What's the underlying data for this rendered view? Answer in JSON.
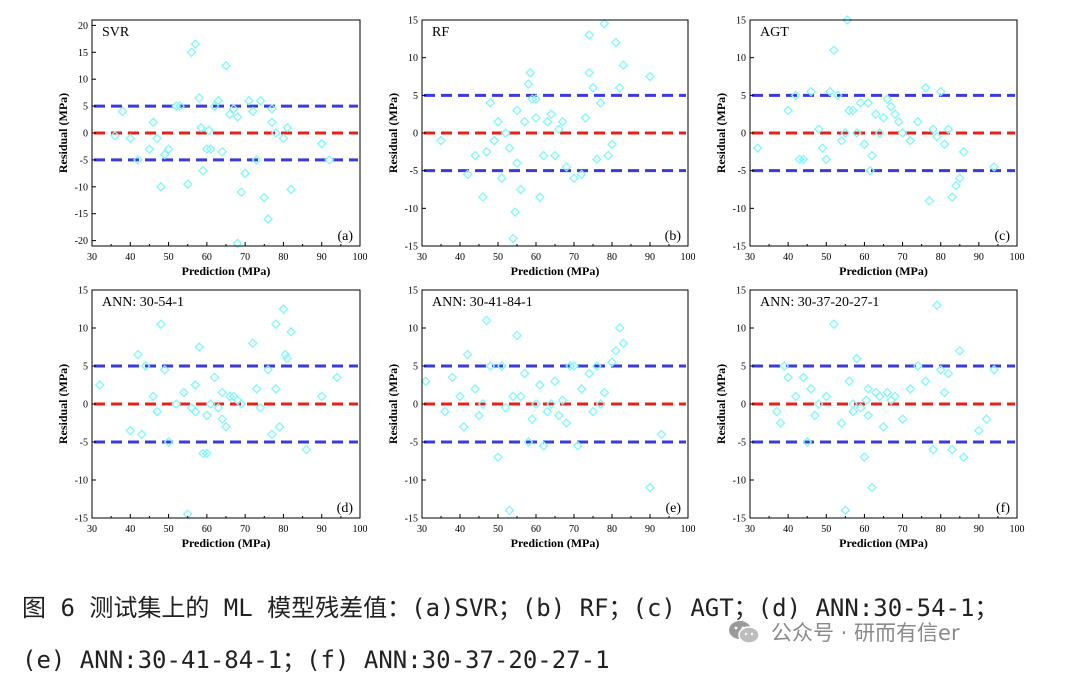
{
  "figure": {
    "caption_line1": "图 6 测试集上的 ML 模型残差值：(a)SVR；(b) RF；(c) AGT；(d) ANN:30-54-1；",
    "caption_line2": "(e) ANN:30-41-84-1；(f) ANN:30-37-20-27-1",
    "watermark": "公众号 · 研而有信er"
  },
  "colors": {
    "points": "#7ff8f8",
    "zero_line": "#e8201a",
    "band_lines": "#3b3bdc",
    "axis": "#000000"
  },
  "chart_data": [
    {
      "type": "scatter",
      "title": "SVR",
      "panel_label": "(a)",
      "xlabel": "Prediction (MPa)",
      "ylabel": "Residual (MPa)",
      "xlim": [
        30,
        100
      ],
      "ylim": [
        -21,
        21
      ],
      "xticks": [
        30,
        40,
        50,
        60,
        70,
        80,
        90,
        100
      ],
      "yticks": [
        -20,
        -15,
        -10,
        -5,
        0,
        5,
        10,
        15,
        20
      ],
      "hlines": [
        {
          "y": 0,
          "style": "zero"
        },
        {
          "y": 5,
          "style": "band"
        },
        {
          "y": -5,
          "style": "band"
        }
      ],
      "x": [
        36,
        38,
        40,
        42,
        45,
        46,
        47,
        48,
        49,
        50,
        52,
        53,
        55,
        56,
        57,
        58,
        58.5,
        59,
        60,
        60.5,
        61,
        62,
        63,
        64,
        65,
        66,
        67,
        68,
        68,
        69,
        70,
        71,
        72,
        73,
        74,
        75,
        76,
        77,
        77,
        78,
        80,
        81,
        82,
        90,
        92
      ],
      "y": [
        -0.5,
        4,
        -1,
        -5,
        -3,
        2,
        -1,
        -10,
        -4,
        -3,
        5,
        5,
        -9.5,
        15,
        16.5,
        6.5,
        1,
        -7,
        -3,
        0.5,
        -3,
        5,
        6,
        -3.5,
        12.5,
        3.5,
        4.5,
        -20.5,
        3,
        -11,
        -7.5,
        6,
        4,
        -5,
        6,
        -12,
        -16,
        2,
        4.5,
        0,
        -1,
        1,
        -10.5,
        -2,
        -5
      ]
    },
    {
      "type": "scatter",
      "title": "RF",
      "panel_label": "(b)",
      "xlabel": "Prediction (MPa)",
      "ylabel": "Residual (MPa)",
      "xlim": [
        30,
        100
      ],
      "ylim": [
        -15,
        15
      ],
      "xticks": [
        30,
        40,
        50,
        60,
        70,
        80,
        90,
        100
      ],
      "yticks": [
        -15,
        -10,
        -5,
        0,
        5,
        10,
        15
      ],
      "hlines": [
        {
          "y": 0,
          "style": "zero"
        },
        {
          "y": 5,
          "style": "band"
        },
        {
          "y": -5,
          "style": "band"
        }
      ],
      "x": [
        35,
        42,
        44,
        46,
        47,
        48,
        49,
        50,
        51,
        52,
        53,
        54,
        54.5,
        55,
        56,
        57,
        58,
        58.5,
        59,
        60,
        61,
        62,
        63,
        64,
        65,
        66,
        67,
        68,
        70,
        72,
        73,
        74,
        75,
        76,
        77,
        78,
        79,
        80,
        81,
        82,
        83,
        90,
        55,
        60,
        74
      ],
      "y": [
        -1,
        -5.5,
        -3,
        -8.5,
        -2.5,
        4,
        -1,
        1.5,
        -6,
        0,
        -2,
        -14,
        -10.5,
        3,
        -7.5,
        1.5,
        6.5,
        8,
        4.5,
        2,
        -8.5,
        -3,
        1.5,
        2.5,
        -3,
        0.5,
        1.5,
        -4.5,
        -6,
        -5.5,
        2,
        13,
        6,
        -3.5,
        4,
        14.5,
        -3,
        -1.5,
        12,
        6,
        9,
        7.5,
        -4,
        4.5,
        8
      ]
    },
    {
      "type": "scatter",
      "title": "AGT",
      "panel_label": "(c)",
      "xlabel": "Prediction (MPa)",
      "ylabel": "Residual (MPa)",
      "xlim": [
        30,
        100
      ],
      "ylim": [
        -15,
        15
      ],
      "xticks": [
        30,
        40,
        50,
        60,
        70,
        80,
        90,
        100
      ],
      "yticks": [
        -15,
        -10,
        -5,
        0,
        5,
        10,
        15
      ],
      "hlines": [
        {
          "y": 0,
          "style": "zero"
        },
        {
          "y": 5,
          "style": "band"
        },
        {
          "y": -5,
          "style": "band"
        }
      ],
      "x": [
        32,
        40,
        42,
        43,
        44,
        46,
        48,
        49,
        50,
        51,
        52,
        53,
        54,
        55,
        55.5,
        56,
        57,
        58,
        59,
        60,
        61,
        61.5,
        62,
        63,
        64,
        65,
        66,
        67,
        68,
        69,
        70,
        72,
        74,
        76,
        77,
        78,
        79,
        80,
        81,
        82,
        83,
        84,
        85,
        86,
        94
      ],
      "y": [
        -2,
        3,
        5,
        -3.5,
        -3.5,
        5.5,
        0.5,
        -2,
        -3.5,
        5.5,
        11,
        5,
        -1,
        0,
        15,
        3,
        3,
        0,
        4,
        -1.5,
        4,
        -5,
        -3,
        2.5,
        0,
        2,
        4.5,
        3.5,
        2.5,
        1.5,
        0,
        -1,
        1.5,
        6,
        -9,
        0.5,
        -0.5,
        5.5,
        -1.5,
        0.5,
        -8.5,
        -7,
        -6,
        -2.5,
        -4.5
      ]
    },
    {
      "type": "scatter",
      "title": "ANN: 30-54-1",
      "panel_label": "(d)",
      "xlabel": "Prediction (MPa)",
      "ylabel": "Residual (MPa)",
      "xlim": [
        30,
        100
      ],
      "ylim": [
        -15,
        15
      ],
      "xticks": [
        30,
        40,
        50,
        60,
        70,
        80,
        90,
        100
      ],
      "yticks": [
        -15,
        -10,
        -5,
        0,
        5,
        10,
        15
      ],
      "hlines": [
        {
          "y": 0,
          "style": "zero"
        },
        {
          "y": 5,
          "style": "band"
        },
        {
          "y": -5,
          "style": "band"
        }
      ],
      "x": [
        32,
        40,
        42,
        43,
        44,
        46,
        47,
        48,
        49,
        50,
        52,
        54,
        55,
        56,
        57,
        58,
        59,
        60,
        61,
        62,
        63,
        64,
        65,
        66,
        67,
        68,
        72,
        73,
        74,
        76,
        77,
        78,
        79,
        80,
        80.5,
        81,
        82,
        86,
        90,
        94,
        60,
        69,
        57,
        64,
        78
      ],
      "y": [
        2.5,
        -3.5,
        6.5,
        -4,
        5,
        1,
        -1,
        10.5,
        4.5,
        -5,
        0,
        1.5,
        -14.5,
        -0.5,
        2.5,
        7.5,
        -6.5,
        -6.5,
        0,
        3.5,
        -0.5,
        1.5,
        -3,
        1,
        1,
        0.5,
        8,
        2,
        -0.5,
        4.5,
        -4,
        10.5,
        -3,
        12.5,
        6.5,
        6,
        9.5,
        -6,
        1,
        3.5,
        -1.5,
        0,
        -1,
        -2,
        2
      ]
    },
    {
      "type": "scatter",
      "title": "ANN: 30-41-84-1",
      "panel_label": "(e)",
      "xlabel": "Prediction (MPa)",
      "ylabel": "Residual (MPa)",
      "xlim": [
        30,
        100
      ],
      "ylim": [
        -15,
        15
      ],
      "xticks": [
        30,
        40,
        50,
        60,
        70,
        80,
        90,
        100
      ],
      "yticks": [
        -15,
        -10,
        -5,
        0,
        5,
        10,
        15
      ],
      "hlines": [
        {
          "y": 0,
          "style": "zero"
        },
        {
          "y": 5,
          "style": "band"
        },
        {
          "y": -5,
          "style": "band"
        }
      ],
      "x": [
        31,
        36,
        38,
        40,
        41,
        42,
        44,
        45,
        46,
        47,
        48,
        50,
        51,
        52,
        53,
        54,
        55,
        56,
        57,
        58,
        59,
        60,
        61,
        62,
        63,
        64,
        65,
        66,
        67,
        68,
        69,
        70,
        71,
        72,
        74,
        75,
        76,
        77,
        78,
        80,
        81,
        82,
        83,
        90,
        93
      ],
      "y": [
        3,
        -1,
        3.5,
        1,
        -3,
        6.5,
        2,
        -1.5,
        0,
        11,
        5,
        -7,
        5,
        -0.5,
        -14,
        1,
        9,
        1,
        4,
        -5,
        -2,
        0,
        2.5,
        -5.5,
        -1,
        0,
        3,
        -1.5,
        0.5,
        -2.5,
        5,
        5,
        -5.5,
        2,
        4,
        -1,
        5,
        0,
        1.5,
        5.5,
        7,
        10,
        8,
        -11,
        -4
      ]
    },
    {
      "type": "scatter",
      "title": "ANN: 30-37-20-27-1",
      "panel_label": "(f)",
      "xlabel": "Prediction (MPa)",
      "ylabel": "Residual (MPa)",
      "xlim": [
        30,
        100
      ],
      "ylim": [
        -15,
        15
      ],
      "xticks": [
        30,
        40,
        50,
        60,
        70,
        80,
        90,
        100
      ],
      "yticks": [
        -15,
        -10,
        -5,
        0,
        5,
        10,
        15
      ],
      "hlines": [
        {
          "y": 0,
          "style": "zero"
        },
        {
          "y": 5,
          "style": "band"
        },
        {
          "y": -5,
          "style": "band"
        }
      ],
      "x": [
        37,
        38,
        39,
        40,
        42,
        44,
        45,
        46,
        47,
        48,
        50,
        52,
        54,
        55,
        56,
        57,
        58,
        59,
        60,
        60.5,
        61,
        62,
        63,
        64,
        65,
        66,
        67,
        68,
        70,
        72,
        74,
        76,
        78,
        79,
        80,
        81,
        82,
        83,
        85,
        86,
        90,
        92,
        94,
        61,
        57
      ],
      "y": [
        -1,
        -2.5,
        5,
        3.5,
        1,
        3.5,
        -5,
        2,
        -1.5,
        0,
        1,
        10.5,
        -2.5,
        -14,
        3,
        -1,
        6,
        -0.5,
        -7,
        0.5,
        2,
        -11,
        1.5,
        1,
        -3,
        1.5,
        0.5,
        1,
        -2,
        2,
        5,
        3,
        -6,
        13,
        4.5,
        1.5,
        4,
        -6,
        7,
        -7,
        -3.5,
        -2,
        4.5,
        -1.5,
        0
      ]
    }
  ]
}
